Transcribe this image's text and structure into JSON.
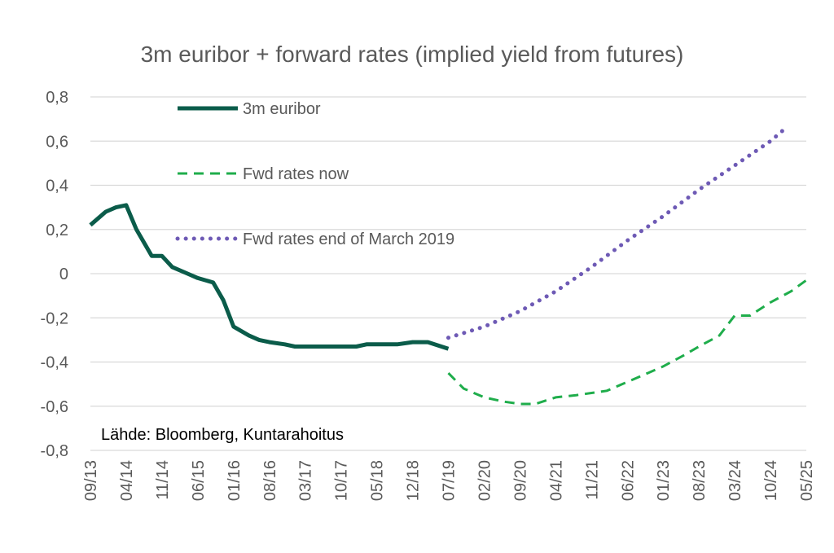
{
  "chart_data": {
    "type": "line",
    "title": "3m euribor + forward rates (implied yield from futures)",
    "source_note": "Lähde: Bloomberg, Kuntarahoitus",
    "ylim": [
      -0.8,
      0.8
    ],
    "y_ticks": [
      "0,8",
      "0,6",
      "0,4",
      "0,2",
      "0",
      "-0,2",
      "-0,4",
      "-0,6",
      "-0,8"
    ],
    "y_tick_values": [
      0.8,
      0.6,
      0.4,
      0.2,
      0,
      -0.2,
      -0.4,
      -0.6,
      -0.8
    ],
    "x_tick_labels": [
      "09/13",
      "04/14",
      "11/14",
      "06/15",
      "01/16",
      "08/16",
      "03/17",
      "10/17",
      "05/18",
      "12/18",
      "07/19",
      "02/20",
      "09/20",
      "04/21",
      "11/21",
      "06/22",
      "01/23",
      "08/23",
      "03/24",
      "10/24",
      "05/25"
    ],
    "grid": true,
    "legend_position": "top-left",
    "series": [
      {
        "name": "3m euribor",
        "style": "solid",
        "color": "#0b5c4a",
        "points": [
          [
            "09/13",
            0.22
          ],
          [
            "12/13",
            0.28
          ],
          [
            "02/14",
            0.3
          ],
          [
            "04/14",
            0.31
          ],
          [
            "06/14",
            0.2
          ],
          [
            "09/14",
            0.08
          ],
          [
            "11/14",
            0.08
          ],
          [
            "01/15",
            0.03
          ],
          [
            "04/15",
            0.0
          ],
          [
            "06/15",
            -0.02
          ],
          [
            "09/15",
            -0.04
          ],
          [
            "11/15",
            -0.12
          ],
          [
            "01/16",
            -0.24
          ],
          [
            "04/16",
            -0.28
          ],
          [
            "06/16",
            -0.3
          ],
          [
            "08/16",
            -0.31
          ],
          [
            "11/16",
            -0.32
          ],
          [
            "01/17",
            -0.33
          ],
          [
            "03/17",
            -0.33
          ],
          [
            "10/17",
            -0.33
          ],
          [
            "01/18",
            -0.33
          ],
          [
            "03/18",
            -0.32
          ],
          [
            "06/18",
            -0.32
          ],
          [
            "09/18",
            -0.32
          ],
          [
            "12/18",
            -0.31
          ],
          [
            "03/19",
            -0.31
          ],
          [
            "07/19",
            -0.34
          ]
        ]
      },
      {
        "name": "Fwd rates now",
        "style": "dashed",
        "color": "#1fad4b",
        "points": [
          [
            "07/19",
            -0.45
          ],
          [
            "10/19",
            -0.52
          ],
          [
            "02/20",
            -0.56
          ],
          [
            "06/20",
            -0.58
          ],
          [
            "09/20",
            -0.59
          ],
          [
            "12/20",
            -0.59
          ],
          [
            "04/21",
            -0.56
          ],
          [
            "08/21",
            -0.55
          ],
          [
            "11/21",
            -0.54
          ],
          [
            "02/22",
            -0.53
          ],
          [
            "06/22",
            -0.49
          ],
          [
            "10/22",
            -0.45
          ],
          [
            "01/23",
            -0.42
          ],
          [
            "05/23",
            -0.37
          ],
          [
            "08/23",
            -0.33
          ],
          [
            "12/23",
            -0.28
          ],
          [
            "03/24",
            -0.19
          ],
          [
            "06/24",
            -0.19
          ],
          [
            "10/24",
            -0.13
          ],
          [
            "02/25",
            -0.08
          ],
          [
            "05/25",
            -0.03
          ]
        ]
      },
      {
        "name": "Fwd rates end of March 2019",
        "style": "dotted",
        "color": "#6e5ab5",
        "points": [
          [
            "07/19",
            -0.29
          ],
          [
            "02/20",
            -0.24
          ],
          [
            "09/20",
            -0.17
          ],
          [
            "04/21",
            -0.08
          ],
          [
            "11/21",
            0.03
          ],
          [
            "06/22",
            0.15
          ],
          [
            "01/23",
            0.26
          ],
          [
            "08/23",
            0.38
          ],
          [
            "03/24",
            0.49
          ],
          [
            "10/24",
            0.6
          ],
          [
            "01/25",
            0.66
          ]
        ]
      }
    ]
  }
}
